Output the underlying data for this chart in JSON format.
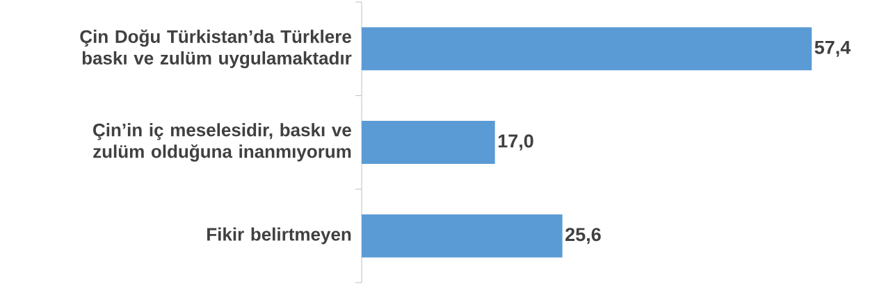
{
  "chart_data": {
    "type": "bar",
    "orientation": "horizontal",
    "categories": [
      "Çin Doğu Türkistan’da Türklere baskı ve zulüm uygulamaktadır",
      "Çin’in iç meselesidir, baskı ve zulüm olduğuna inanmıyorum",
      "Fikir belirtmeyen"
    ],
    "values": [
      57.4,
      17.0,
      25.6
    ],
    "value_labels": [
      "57,4",
      "17,0",
      "25,6"
    ],
    "color": "#5b9bd5"
  }
}
